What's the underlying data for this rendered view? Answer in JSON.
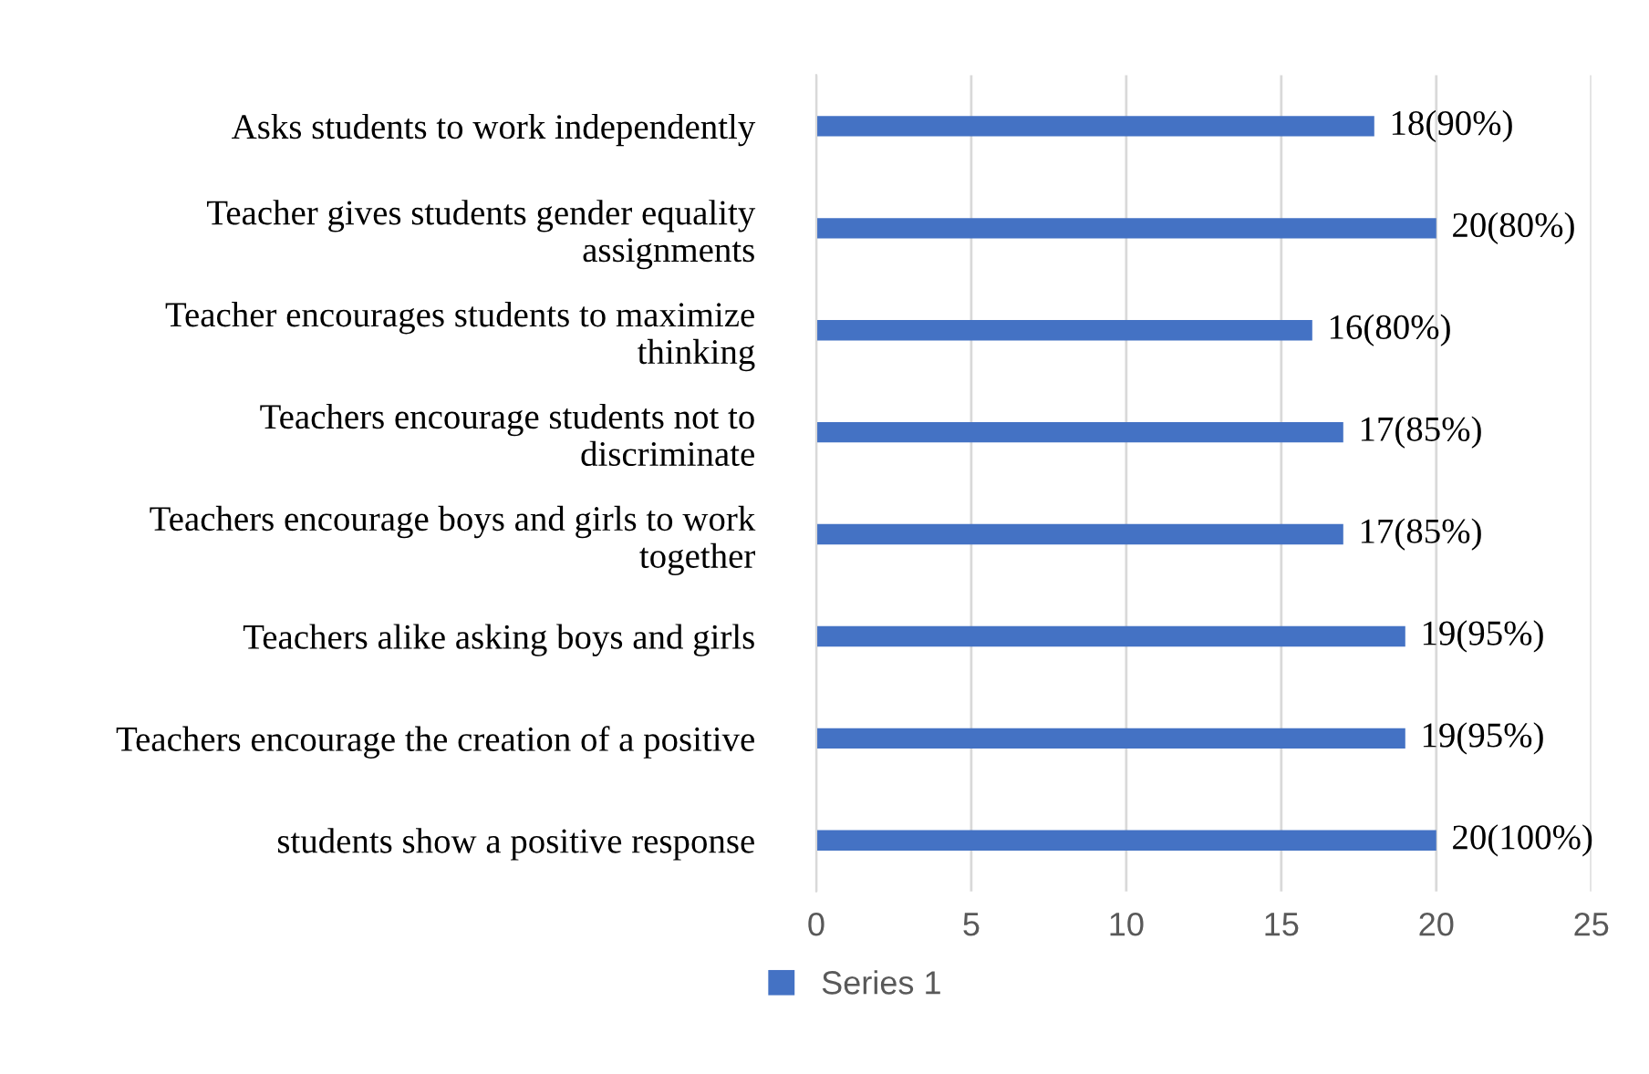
{
  "chart_data": {
    "type": "bar",
    "orientation": "horizontal",
    "categories": [
      "Asks students to work independently",
      "Teacher gives students gender equality assignments",
      "Teacher encourages students to maximize thinking",
      "Teachers encourage students not to discriminate",
      "Teachers encourage boys and girls to work together",
      "Teachers alike asking boys and girls",
      "Teachers encourage the creation of a positive",
      "students show a positive response"
    ],
    "series": [
      {
        "name": "Series 1",
        "color": "#4472c4",
        "values": [
          18,
          20,
          16,
          17,
          17,
          19,
          19,
          20
        ],
        "value_labels": [
          "18(90%)",
          "20(80%)",
          "16(80%)",
          "17(85%)",
          "17(85%)",
          "19(95%)",
          "19(95%)",
          "20(100%)"
        ]
      }
    ],
    "xlim": [
      0,
      25
    ],
    "xticks": [
      0,
      5,
      10,
      15,
      20,
      25
    ],
    "grid": "x",
    "legend": "bottom"
  }
}
